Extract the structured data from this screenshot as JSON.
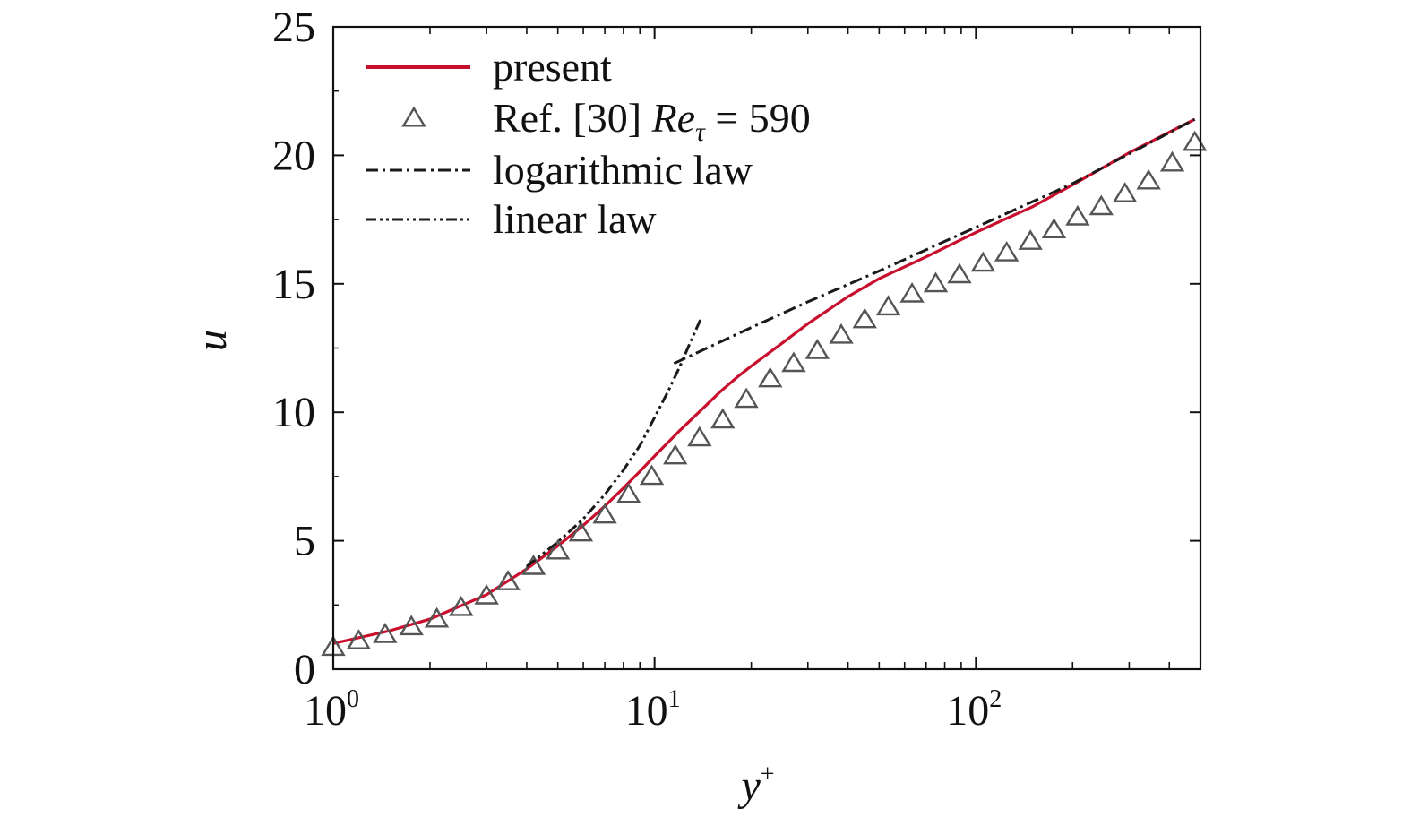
{
  "chart_data": {
    "type": "line",
    "xscale": "log",
    "xlim": [
      1,
      500
    ],
    "ylim": [
      0,
      25
    ],
    "xlabel": "y",
    "xlabel_sup": "+",
    "ylabel": "u",
    "yticks": [
      {
        "value": 0,
        "label": "0"
      },
      {
        "value": 5,
        "label": "5"
      },
      {
        "value": 10,
        "label": "10"
      },
      {
        "value": 15,
        "label": "15"
      },
      {
        "value": 20,
        "label": "20"
      },
      {
        "value": 25,
        "label": "25"
      }
    ],
    "xticks": [
      {
        "value": 1,
        "base": "10",
        "exp": "0"
      },
      {
        "value": 10,
        "base": "10",
        "exp": "1"
      },
      {
        "value": 100,
        "base": "10",
        "exp": "2"
      }
    ],
    "legend_position": "top-left",
    "series": [
      {
        "name": "present",
        "kind": "line",
        "color": "#c8102e",
        "points": [
          [
            1,
            1.0
          ],
          [
            1.5,
            1.5
          ],
          [
            2,
            1.95
          ],
          [
            3,
            2.9
          ],
          [
            4,
            3.9
          ],
          [
            5,
            4.8
          ],
          [
            6,
            5.6
          ],
          [
            7,
            6.35
          ],
          [
            8,
            7.05
          ],
          [
            9,
            7.7
          ],
          [
            10,
            8.3
          ],
          [
            12,
            9.3
          ],
          [
            14,
            10.1
          ],
          [
            16,
            10.8
          ],
          [
            18,
            11.35
          ],
          [
            20,
            11.8
          ],
          [
            25,
            12.7
          ],
          [
            30,
            13.45
          ],
          [
            40,
            14.5
          ],
          [
            50,
            15.2
          ],
          [
            70,
            16.05
          ],
          [
            100,
            17.0
          ],
          [
            150,
            18.0
          ],
          [
            200,
            18.85
          ],
          [
            300,
            20.1
          ],
          [
            400,
            20.9
          ],
          [
            480,
            21.4
          ]
        ]
      },
      {
        "name": "Ref. [30] ",
        "name_italic": "Re",
        "name_sub": "τ",
        "name_rest": " = 590",
        "kind": "markers",
        "marker": "triangle",
        "color": "#555555",
        "points": [
          [
            1,
            0.85
          ],
          [
            1.2,
            1.1
          ],
          [
            1.45,
            1.35
          ],
          [
            1.75,
            1.65
          ],
          [
            2.1,
            1.95
          ],
          [
            2.5,
            2.4
          ],
          [
            3,
            2.85
          ],
          [
            3.5,
            3.4
          ],
          [
            4.2,
            4.0
          ],
          [
            5,
            4.6
          ],
          [
            5.9,
            5.3
          ],
          [
            7,
            6.0
          ],
          [
            8.3,
            6.8
          ],
          [
            9.8,
            7.5
          ],
          [
            11.6,
            8.3
          ],
          [
            13.8,
            9.0
          ],
          [
            16.3,
            9.7
          ],
          [
            19.3,
            10.5
          ],
          [
            22.9,
            11.3
          ],
          [
            27.1,
            11.9
          ],
          [
            32.1,
            12.4
          ],
          [
            38.1,
            13.0
          ],
          [
            45.1,
            13.6
          ],
          [
            53.4,
            14.1
          ],
          [
            63.3,
            14.6
          ],
          [
            75,
            15.0
          ],
          [
            88.9,
            15.35
          ],
          [
            105.3,
            15.8
          ],
          [
            124.7,
            16.2
          ],
          [
            147.8,
            16.65
          ],
          [
            175,
            17.1
          ],
          [
            207.4,
            17.6
          ],
          [
            245.6,
            18.0
          ],
          [
            291,
            18.5
          ],
          [
            344.8,
            19.0
          ],
          [
            408.5,
            19.7
          ],
          [
            480,
            20.5
          ]
        ]
      },
      {
        "name": "logarithmic law",
        "kind": "line",
        "dash": "dash-dot",
        "color": "#1a1a1a",
        "points": [
          [
            11.5,
            11.9
          ],
          [
            14,
            12.4
          ],
          [
            20,
            13.3
          ],
          [
            30,
            14.3
          ],
          [
            50,
            15.5
          ],
          [
            100,
            17.2
          ],
          [
            200,
            18.9
          ],
          [
            480,
            21.4
          ]
        ]
      },
      {
        "name": "linear law",
        "kind": "line",
        "dash": "dash-dot-dot",
        "color": "#1a1a1a",
        "points": [
          [
            4,
            4.0
          ],
          [
            5,
            4.95
          ],
          [
            6,
            5.85
          ],
          [
            7,
            6.8
          ],
          [
            8,
            7.75
          ],
          [
            9,
            8.7
          ],
          [
            10,
            9.8
          ],
          [
            11,
            10.8
          ],
          [
            12,
            11.8
          ],
          [
            13,
            12.8
          ],
          [
            14,
            13.7
          ]
        ]
      }
    ]
  }
}
